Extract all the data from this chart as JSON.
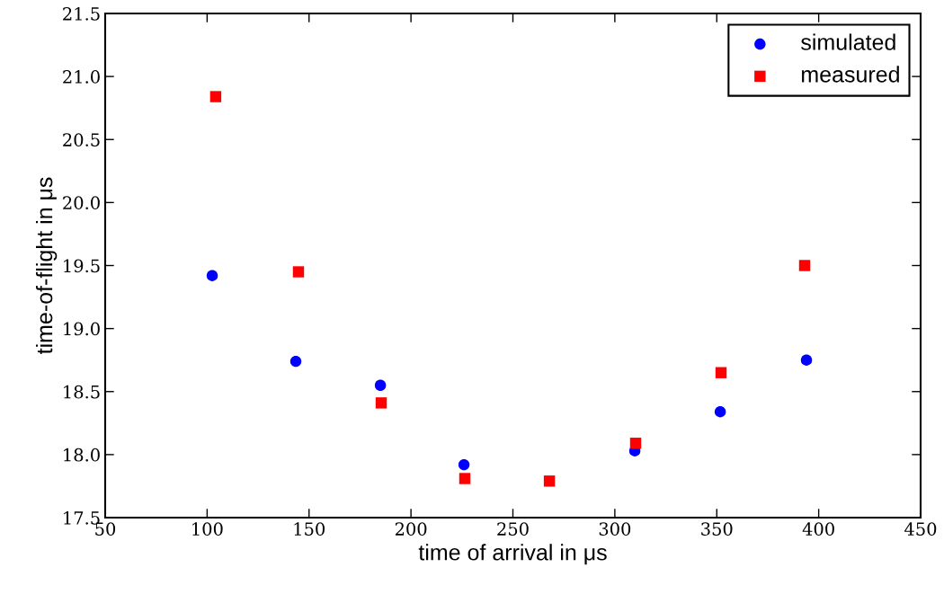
{
  "chart_data": {
    "type": "scatter",
    "xlabel": "time of arrival in μs",
    "ylabel": "time-of-flight in μs",
    "xlim": [
      50,
      450
    ],
    "xticks": [
      50,
      100,
      150,
      200,
      250,
      300,
      350,
      400,
      450
    ],
    "ylim": [
      17.5,
      21.5
    ],
    "yticks": [
      {
        "value": 17.5,
        "label": "17.5"
      },
      {
        "value": 18.0,
        "label": "18.0"
      },
      {
        "value": 18.5,
        "label": "18.5"
      },
      {
        "value": 19.0,
        "label": "19.0"
      },
      {
        "value": 19.5,
        "label": "19.5"
      },
      {
        "value": 20.0,
        "label": "20.0"
      },
      {
        "value": 20.5,
        "label": "20.5"
      },
      {
        "value": 21.0,
        "label": "21.0"
      },
      {
        "value": 21.5,
        "label": "21.5"
      }
    ],
    "legend": "top right",
    "grid": false,
    "series": [
      {
        "name": "simulated",
        "color": "#0000ff",
        "marker": "circle",
        "x": [
          102.5,
          143.5,
          185,
          226,
          267.4,
          309.8,
          351.7,
          394
        ],
        "values": [
          19.42,
          18.74,
          18.55,
          17.92,
          null,
          18.03,
          18.34,
          18.75
        ]
      },
      {
        "name": "measured",
        "color": "#ff0000",
        "marker": "square",
        "x": [
          104.2,
          144.8,
          185.4,
          226.4,
          267.9,
          310.2,
          352.1,
          393.1
        ],
        "values": [
          20.84,
          19.45,
          18.41,
          17.81,
          17.79,
          18.09,
          18.65,
          19.5
        ]
      }
    ]
  }
}
